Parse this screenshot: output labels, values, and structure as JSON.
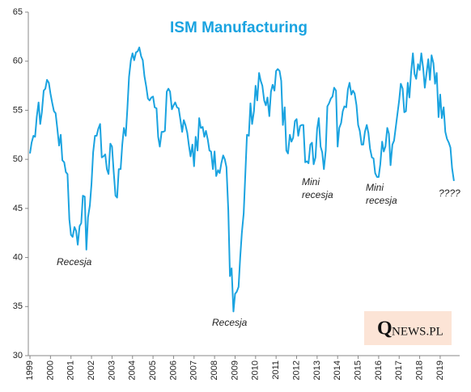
{
  "chart_data": {
    "type": "line",
    "title": "ISM Manufacturing",
    "x": [
      1999,
      1999.08,
      1999.17,
      1999.25,
      1999.33,
      1999.42,
      1999.5,
      1999.58,
      1999.67,
      1999.75,
      1999.83,
      1999.92,
      2000,
      2000.08,
      2000.17,
      2000.25,
      2000.33,
      2000.42,
      2000.5,
      2000.58,
      2000.67,
      2000.75,
      2000.83,
      2000.92,
      2001,
      2001.08,
      2001.17,
      2001.25,
      2001.33,
      2001.42,
      2001.5,
      2001.58,
      2001.67,
      2001.75,
      2001.83,
      2001.92,
      2002,
      2002.08,
      2002.17,
      2002.25,
      2002.33,
      2002.42,
      2002.5,
      2002.58,
      2002.67,
      2002.75,
      2002.83,
      2002.92,
      2003,
      2003.08,
      2003.17,
      2003.25,
      2003.33,
      2003.42,
      2003.5,
      2003.58,
      2003.67,
      2003.75,
      2003.83,
      2003.92,
      2004,
      2004.08,
      2004.17,
      2004.25,
      2004.33,
      2004.42,
      2004.5,
      2004.58,
      2004.67,
      2004.75,
      2004.83,
      2004.92,
      2005,
      2005.08,
      2005.17,
      2005.25,
      2005.33,
      2005.42,
      2005.5,
      2005.58,
      2005.67,
      2005.75,
      2005.83,
      2005.92,
      2006,
      2006.08,
      2006.17,
      2006.25,
      2006.33,
      2006.42,
      2006.5,
      2006.58,
      2006.67,
      2006.75,
      2006.83,
      2006.92,
      2007,
      2007.08,
      2007.17,
      2007.25,
      2007.33,
      2007.42,
      2007.5,
      2007.58,
      2007.67,
      2007.75,
      2007.83,
      2007.92,
      2008,
      2008.08,
      2008.17,
      2008.25,
      2008.33,
      2008.42,
      2008.5,
      2008.58,
      2008.67,
      2008.75,
      2008.83,
      2008.92,
      2009,
      2009.08,
      2009.17,
      2009.25,
      2009.33,
      2009.42,
      2009.5,
      2009.58,
      2009.67,
      2009.75,
      2009.83,
      2009.92,
      2010,
      2010.08,
      2010.17,
      2010.25,
      2010.33,
      2010.42,
      2010.5,
      2010.58,
      2010.67,
      2010.75,
      2010.83,
      2010.92,
      2011,
      2011.08,
      2011.17,
      2011.25,
      2011.33,
      2011.42,
      2011.5,
      2011.58,
      2011.67,
      2011.75,
      2011.83,
      2011.92,
      2012,
      2012.08,
      2012.17,
      2012.25,
      2012.33,
      2012.42,
      2012.5,
      2012.58,
      2012.67,
      2012.75,
      2012.83,
      2012.92,
      2013,
      2013.08,
      2013.17,
      2013.25,
      2013.33,
      2013.42,
      2013.5,
      2013.58,
      2013.67,
      2013.75,
      2013.83,
      2013.92,
      2014,
      2014.08,
      2014.17,
      2014.25,
      2014.33,
      2014.42,
      2014.5,
      2014.58,
      2014.67,
      2014.75,
      2014.83,
      2014.92,
      2015,
      2015.08,
      2015.17,
      2015.25,
      2015.33,
      2015.42,
      2015.5,
      2015.58,
      2015.67,
      2015.75,
      2015.83,
      2015.92,
      2016,
      2016.08,
      2016.17,
      2016.25,
      2016.33,
      2016.42,
      2016.5,
      2016.58,
      2016.67,
      2016.75,
      2016.83,
      2016.92,
      2017,
      2017.08,
      2017.17,
      2017.25,
      2017.33,
      2017.42,
      2017.5,
      2017.58,
      2017.67,
      2017.75,
      2017.83,
      2017.92,
      2018,
      2018.08,
      2018.17,
      2018.25,
      2018.33,
      2018.42,
      2018.5,
      2018.58,
      2018.67,
      2018.75,
      2018.83,
      2018.92,
      2019,
      2019.08,
      2019.17,
      2019.25,
      2019.33,
      2019.42,
      2019.5,
      2019.58,
      2019.67
    ],
    "series": [
      {
        "name": "ISM Manufacturing",
        "color": "#1aa3e0",
        "values": [
          50.6,
          51.7,
          52.4,
          52.3,
          54.3,
          55.8,
          53.6,
          54.8,
          57.0,
          57.2,
          58.1,
          57.8,
          56.7,
          55.8,
          54.9,
          54.7,
          53.2,
          51.4,
          52.5,
          49.9,
          49.7,
          48.7,
          48.5,
          43.9,
          42.3,
          42.1,
          43.1,
          42.7,
          41.3,
          43.2,
          43.5,
          46.3,
          46.2,
          40.8,
          44.1,
          45.3,
          47.5,
          50.7,
          52.4,
          52.4,
          53.1,
          53.6,
          50.2,
          50.3,
          50.5,
          49.0,
          48.5,
          51.6,
          51.3,
          48.8,
          46.3,
          46.1,
          49.0,
          49.0,
          51.5,
          53.2,
          52.4,
          55.2,
          58.4,
          60.1,
          60.8,
          60.1,
          60.9,
          61.0,
          61.4,
          60.5,
          60.1,
          58.5,
          57.4,
          56.2,
          56.0,
          56.3,
          56.4,
          55.3,
          55.2,
          52.3,
          51.3,
          52.8,
          52.8,
          52.9,
          56.9,
          57.2,
          56.9,
          55.1,
          55.5,
          55.8,
          55.3,
          55.2,
          54.1,
          52.8,
          54.0,
          53.5,
          52.7,
          51.4,
          50.3,
          51.5,
          49.3,
          52.3,
          50.9,
          54.2,
          53.2,
          53.3,
          52.3,
          52.9,
          52.0,
          50.9,
          50.8,
          49.0,
          50.8,
          48.3,
          48.9,
          48.6,
          49.6,
          50.4,
          50.0,
          49.2,
          44.8,
          38.1,
          38.9,
          34.5,
          36.3,
          36.5,
          37.0,
          40.0,
          42.5,
          44.5,
          48.5,
          52.5,
          52.4,
          55.7,
          53.6,
          54.9,
          57.5,
          56.0,
          58.8,
          58.0,
          57.5,
          56.0,
          55.5,
          56.3,
          54.4,
          56.9,
          57.6,
          57.0,
          59.0,
          59.2,
          59.0,
          58.0,
          53.5,
          55.3,
          50.9,
          50.6,
          52.5,
          51.8,
          52.2,
          53.9,
          54.1,
          52.4,
          53.4,
          53.5,
          53.5,
          49.7,
          49.8,
          49.6,
          51.5,
          51.7,
          49.5,
          50.2,
          53.1,
          54.2,
          51.3,
          50.7,
          49.0,
          50.9,
          55.4,
          55.7,
          56.2,
          56.4,
          57.3,
          57.0,
          51.3,
          53.2,
          53.7,
          54.9,
          55.4,
          55.3,
          57.1,
          57.8,
          56.6,
          57.0,
          56.7,
          55.5,
          53.5,
          52.9,
          51.5,
          51.5,
          52.8,
          53.5,
          52.7,
          51.1,
          50.2,
          50.1,
          48.6,
          48.2,
          48.2,
          49.5,
          51.8,
          50.8,
          51.3,
          53.2,
          52.6,
          49.4,
          51.5,
          51.9,
          53.2,
          54.7,
          56.0,
          57.7,
          57.2,
          54.8,
          54.9,
          57.8,
          56.3,
          58.8,
          60.8,
          58.7,
          58.2,
          59.7,
          59.1,
          60.8,
          59.3,
          57.3,
          58.7,
          60.2,
          58.1,
          60.6,
          59.8,
          57.7,
          58.8,
          54.3,
          56.6,
          54.2,
          55.3,
          52.8,
          52.1,
          51.7,
          51.2,
          49.1,
          47.8
        ]
      }
    ],
    "xlim": [
      1998.92,
      2019.95
    ],
    "xticks": [
      1999,
      2000,
      2001,
      2002,
      2003,
      2004,
      2005,
      2006,
      2007,
      2008,
      2009,
      2010,
      2011,
      2012,
      2013,
      2014,
      2015,
      2016,
      2017,
      2018,
      2019
    ],
    "ylim": [
      30,
      65
    ],
    "yticks": [
      30,
      35,
      40,
      45,
      50,
      55,
      60,
      65
    ],
    "annotations": [
      "Recesja",
      "Recesja",
      "Mini",
      "recesja",
      "Mini",
      "recesja",
      "????"
    ],
    "logo": {
      "initial": "Q",
      "rest": "NEWS.PL"
    }
  }
}
